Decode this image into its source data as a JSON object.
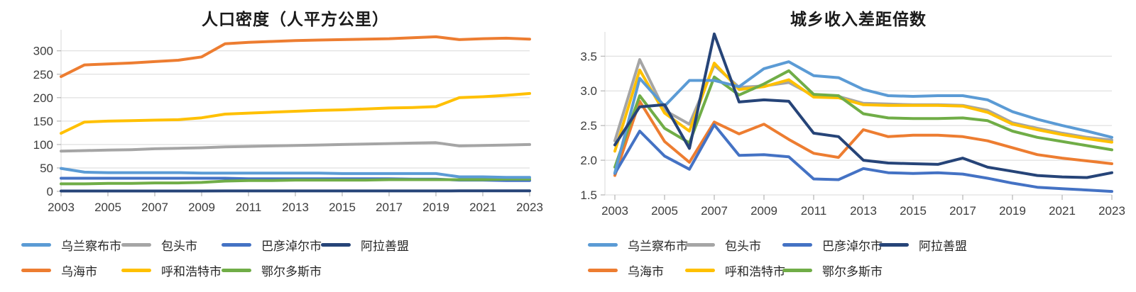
{
  "page": {
    "background": "#ffffff"
  },
  "palette": {
    "grid": "#d9d9d9",
    "axis_line": "#d9d9d9",
    "tick_mark": "#a6a6a6",
    "axis_text": "#3d3d3d",
    "title_text": "#1a1a1a",
    "legend_text": "#262626"
  },
  "chart_data": [
    {
      "type": "line",
      "title": "人口密度（人平方公里）",
      "xlabel": "",
      "ylabel": "",
      "x": [
        2003,
        2004,
        2005,
        2006,
        2007,
        2008,
        2009,
        2010,
        2011,
        2012,
        2013,
        2014,
        2015,
        2016,
        2017,
        2018,
        2019,
        2020,
        2021,
        2022,
        2023
      ],
      "x_tick_labels": [
        "2003",
        "2005",
        "2007",
        "2009",
        "2011",
        "2013",
        "2015",
        "2017",
        "2019",
        "2021",
        "2023"
      ],
      "ylim": [
        0,
        345
      ],
      "yticks": [
        0,
        50,
        100,
        150,
        200,
        250,
        300
      ],
      "ytick_labels": [
        "0",
        "50",
        "100",
        "150",
        "200",
        "250",
        "300"
      ],
      "grid": true,
      "legend_position": "bottom",
      "series": [
        {
          "name": "乌兰察布市",
          "color": "#5B9BD5",
          "values": [
            49,
            41,
            40,
            40,
            40,
            40,
            39,
            39,
            39,
            39,
            39,
            39,
            38,
            38,
            38,
            38,
            38,
            31,
            31,
            30,
            30
          ]
        },
        {
          "name": "包头市",
          "color": "#A5A5A5",
          "values": [
            86,
            87,
            88,
            89,
            91,
            92,
            93,
            95,
            96,
            97,
            98,
            99,
            100,
            101,
            102,
            103,
            104,
            97,
            98,
            99,
            100
          ]
        },
        {
          "name": "巴彦淖尔市",
          "color": "#4472C4",
          "values": [
            28,
            28,
            28,
            28,
            28,
            28,
            28,
            28,
            27,
            27,
            27,
            27,
            27,
            27,
            27,
            26,
            26,
            24,
            24,
            23,
            23
          ]
        },
        {
          "name": "阿拉善盟",
          "color": "#264478",
          "values": [
            0.8,
            0.8,
            0.8,
            0.8,
            0.8,
            0.8,
            0.8,
            0.9,
            0.9,
            0.9,
            0.9,
            0.9,
            0.9,
            0.9,
            0.9,
            0.9,
            0.9,
            1,
            1,
            1,
            1
          ]
        },
        {
          "name": "乌海市",
          "color": "#ED7D31",
          "values": [
            245,
            270,
            272,
            274,
            277,
            280,
            287,
            315,
            318,
            320,
            322,
            323,
            324,
            325,
            326,
            328,
            330,
            324,
            326,
            327,
            325
          ]
        },
        {
          "name": "呼和浩特市",
          "color": "#FFC000",
          "values": [
            124,
            148,
            150,
            151,
            152,
            153,
            157,
            165,
            167,
            169,
            171,
            173,
            174,
            176,
            178,
            179,
            181,
            200,
            202,
            205,
            209
          ]
        },
        {
          "name": "鄂尔多斯市",
          "color": "#70AD47",
          "values": [
            16,
            16,
            17,
            17,
            18,
            18,
            19,
            22,
            23,
            23,
            24,
            24,
            24,
            24,
            25,
            25,
            25,
            25,
            25,
            26,
            26
          ]
        }
      ]
    },
    {
      "type": "line",
      "title": "城乡收入差距倍数",
      "xlabel": "",
      "ylabel": "",
      "x": [
        2003,
        2004,
        2005,
        2006,
        2007,
        2008,
        2009,
        2010,
        2011,
        2012,
        2013,
        2014,
        2015,
        2016,
        2017,
        2018,
        2019,
        2020,
        2021,
        2022,
        2023
      ],
      "x_tick_labels": [
        "2003",
        "2005",
        "2007",
        "2009",
        "2011",
        "2013",
        "2015",
        "2017",
        "2019",
        "2021",
        "2023"
      ],
      "ylim": [
        1.5,
        3.85
      ],
      "yticks": [
        1.5,
        2.0,
        2.5,
        3.0,
        3.5
      ],
      "ytick_labels": [
        "1.5",
        "2.0",
        "2.5",
        "3.0",
        "3.5"
      ],
      "grid": true,
      "legend_position": "bottom",
      "series": [
        {
          "name": "乌兰察布市",
          "color": "#5B9BD5",
          "values": [
            1.82,
            3.18,
            2.78,
            3.15,
            3.15,
            3.06,
            3.32,
            3.42,
            3.22,
            3.19,
            3.02,
            2.93,
            2.92,
            2.93,
            2.93,
            2.87,
            2.7,
            2.59,
            2.5,
            2.42,
            2.33
          ]
        },
        {
          "name": "包头市",
          "color": "#A5A5A5",
          "values": [
            2.28,
            3.45,
            2.72,
            2.52,
            3.37,
            3.05,
            3.07,
            3.12,
            2.93,
            2.92,
            2.82,
            2.81,
            2.8,
            2.8,
            2.79,
            2.72,
            2.54,
            2.46,
            2.39,
            2.33,
            2.29
          ]
        },
        {
          "name": "巴彦淖尔市",
          "color": "#4472C4",
          "values": [
            1.81,
            2.42,
            2.06,
            1.87,
            2.51,
            2.07,
            2.08,
            2.05,
            1.73,
            1.72,
            1.88,
            1.82,
            1.81,
            1.82,
            1.8,
            1.74,
            1.67,
            1.61,
            1.59,
            1.57,
            1.55
          ]
        },
        {
          "name": "阿拉善盟",
          "color": "#264478",
          "values": [
            2.22,
            2.77,
            2.8,
            2.17,
            3.82,
            2.84,
            2.87,
            2.85,
            2.39,
            2.34,
            2.0,
            1.96,
            1.95,
            1.94,
            2.03,
            1.9,
            1.84,
            1.78,
            1.76,
            1.75,
            1.82
          ]
        },
        {
          "name": "乌海市",
          "color": "#ED7D31",
          "values": [
            1.78,
            2.85,
            2.27,
            1.97,
            2.55,
            2.38,
            2.52,
            2.3,
            2.1,
            2.04,
            2.44,
            2.34,
            2.36,
            2.36,
            2.34,
            2.28,
            2.18,
            2.08,
            2.03,
            1.99,
            1.95
          ]
        },
        {
          "name": "呼和浩特市",
          "color": "#FFC000",
          "values": [
            2.13,
            3.3,
            2.68,
            2.42,
            3.4,
            3.02,
            3.06,
            3.16,
            2.91,
            2.9,
            2.8,
            2.79,
            2.79,
            2.79,
            2.78,
            2.69,
            2.52,
            2.44,
            2.37,
            2.31,
            2.26
          ]
        },
        {
          "name": "鄂尔多斯市",
          "color": "#70AD47",
          "values": [
            1.9,
            2.93,
            2.46,
            2.25,
            3.2,
            2.94,
            3.1,
            3.29,
            2.95,
            2.93,
            2.67,
            2.61,
            2.6,
            2.6,
            2.61,
            2.57,
            2.42,
            2.33,
            2.27,
            2.21,
            2.15
          ]
        }
      ]
    }
  ]
}
